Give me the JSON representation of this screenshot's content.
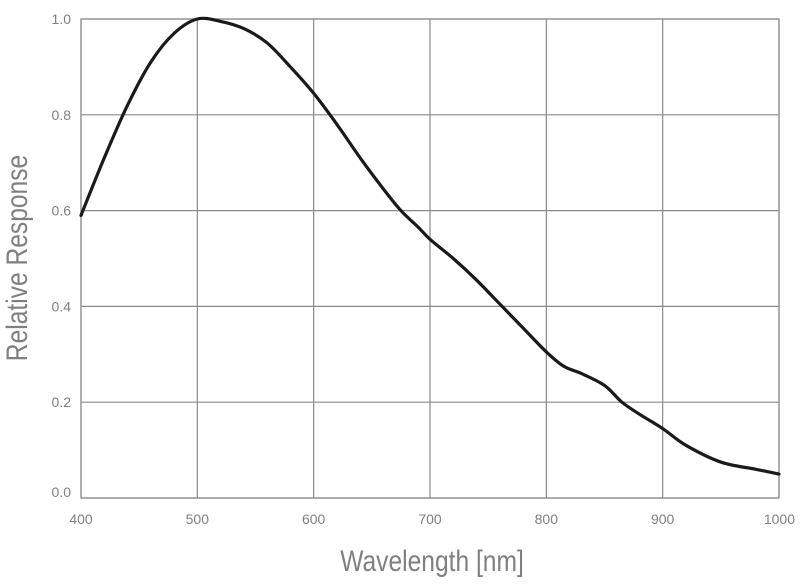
{
  "chart_data": {
    "type": "line",
    "title": "",
    "xlabel": "Wavelength [nm]",
    "ylabel": "Relative Response",
    "xlim": [
      400,
      1000
    ],
    "ylim": [
      0,
      1
    ],
    "x_ticks": [
      400,
      500,
      600,
      700,
      800,
      900,
      1000
    ],
    "x_tick_labels": [
      "400",
      "500",
      "600",
      "700",
      "800",
      "900",
      "1000"
    ],
    "y_ticks": [
      0,
      0.2,
      0.4,
      0.6,
      0.8,
      1.0
    ],
    "y_tick_labels": [
      "0.0",
      "0.2",
      "0.4",
      "0.6",
      "0.8",
      "1.0"
    ],
    "grid": true,
    "legend": "none",
    "line_color": "#1a1a1a",
    "series": [
      {
        "x": [
          400,
          420,
          440,
          460,
          480,
          500,
          520,
          540,
          560,
          580,
          600,
          620,
          640,
          660,
          675,
          690,
          700,
          720,
          740,
          760,
          780,
          800,
          815,
          830,
          850,
          865,
          880,
          900,
          920,
          950,
          980,
          1000
        ],
        "y": [
          0.59,
          0.71,
          0.82,
          0.91,
          0.97,
          1.0,
          0.995,
          0.98,
          0.95,
          0.9,
          0.845,
          0.78,
          0.71,
          0.645,
          0.6,
          0.565,
          0.54,
          0.5,
          0.455,
          0.405,
          0.355,
          0.305,
          0.275,
          0.26,
          0.235,
          0.2,
          0.175,
          0.145,
          0.11,
          0.075,
          0.06,
          0.05
        ]
      }
    ]
  }
}
